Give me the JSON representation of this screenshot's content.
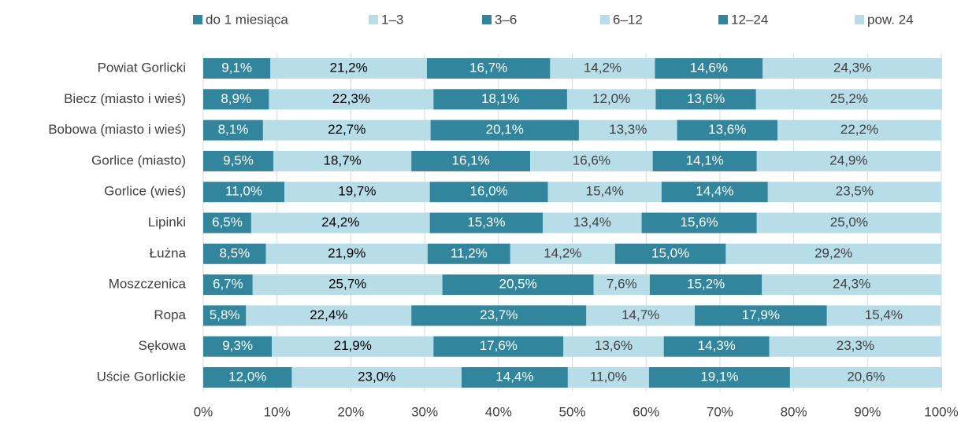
{
  "chart_data": {
    "type": "stacked-bar-horizontal",
    "categories": [
      "Powiat Gorlicki",
      "Biecz (miasto i wieś)",
      "Bobowa (miasto i wieś)",
      "Gorlice (miasto)",
      "Gorlice (wieś)",
      "Lipinki",
      "Łużna",
      "Moszczenica",
      "Ropa",
      "Sękowa",
      "Uście Gorlickie"
    ],
    "series": [
      {
        "name": "do 1 miesiąca",
        "color": "#31859c",
        "label_color": "#ffffff",
        "values": [
          9.1,
          8.9,
          8.1,
          9.5,
          11.0,
          6.5,
          8.5,
          6.7,
          5.8,
          9.3,
          12.0
        ],
        "value_labels": [
          "9,1%",
          "8,9%",
          "8,1%",
          "9,5%",
          "11,0%",
          "6,5%",
          "8,5%",
          "6,7%",
          "5,8%",
          "9,3%",
          "12,0%"
        ]
      },
      {
        "name": "1–3",
        "color": "#b7dee8",
        "label_color": "#000000",
        "values": [
          21.2,
          22.3,
          22.7,
          18.7,
          19.7,
          24.2,
          21.9,
          25.7,
          22.4,
          21.9,
          23.0
        ],
        "value_labels": [
          "21,2%",
          "22,3%",
          "22,7%",
          "18,7%",
          "19,7%",
          "24,2%",
          "21,9%",
          "25,7%",
          "22,4%",
          "21,9%",
          "23,0%"
        ]
      },
      {
        "name": "3–6",
        "color": "#31859c",
        "label_color": "#ffffff",
        "values": [
          16.7,
          18.1,
          20.1,
          16.1,
          16.0,
          15.3,
          11.2,
          20.5,
          23.7,
          17.6,
          14.4
        ],
        "value_labels": [
          "16,7%",
          "18,1%",
          "20,1%",
          "16,1%",
          "16,0%",
          "15,3%",
          "11,2%",
          "20,5%",
          "23,7%",
          "17,6%",
          "14,4%"
        ]
      },
      {
        "name": "6–12",
        "color": "#b7dee8",
        "label_color": "#404040",
        "values": [
          14.2,
          12.0,
          13.3,
          16.6,
          15.4,
          13.4,
          14.2,
          7.6,
          14.7,
          13.6,
          11.0
        ],
        "value_labels": [
          "14,2%",
          "12,0%",
          "13,3%",
          "16,6%",
          "15,4%",
          "13,4%",
          "14,2%",
          "7,6%",
          "14,7%",
          "13,6%",
          "11,0%"
        ]
      },
      {
        "name": "12–24",
        "color": "#31859c",
        "label_color": "#ffffff",
        "values": [
          14.6,
          13.6,
          13.6,
          14.1,
          14.4,
          15.6,
          15.0,
          15.2,
          17.9,
          14.3,
          19.1
        ],
        "value_labels": [
          "14,6%",
          "13,6%",
          "13,6%",
          "14,1%",
          "14,4%",
          "15,6%",
          "15,0%",
          "15,2%",
          "17,9%",
          "14,3%",
          "19,1%"
        ]
      },
      {
        "name": "pow. 24",
        "color": "#b7dee8",
        "label_color": "#404040",
        "values": [
          24.3,
          25.2,
          22.2,
          24.9,
          23.5,
          25.0,
          29.2,
          24.3,
          15.4,
          23.3,
          20.6
        ],
        "value_labels": [
          "24,3%",
          "25,2%",
          "22,2%",
          "24,9%",
          "23,5%",
          "25,0%",
          "29,2%",
          "24,3%",
          "15,4%",
          "23,3%",
          "20,6%"
        ]
      }
    ],
    "xlim": [
      0,
      100
    ],
    "xticks": [
      {
        "value": 0,
        "label": "0%"
      },
      {
        "value": 10,
        "label": "10%"
      },
      {
        "value": 20,
        "label": "20%"
      },
      {
        "value": 30,
        "label": "30%"
      },
      {
        "value": 40,
        "label": "40%"
      },
      {
        "value": 50,
        "label": "50%"
      },
      {
        "value": 60,
        "label": "60%"
      },
      {
        "value": 70,
        "label": "70%"
      },
      {
        "value": 80,
        "label": "80%"
      },
      {
        "value": 90,
        "label": "90%"
      },
      {
        "value": 100,
        "label": "100%"
      }
    ],
    "grid": true,
    "legend": "top"
  }
}
